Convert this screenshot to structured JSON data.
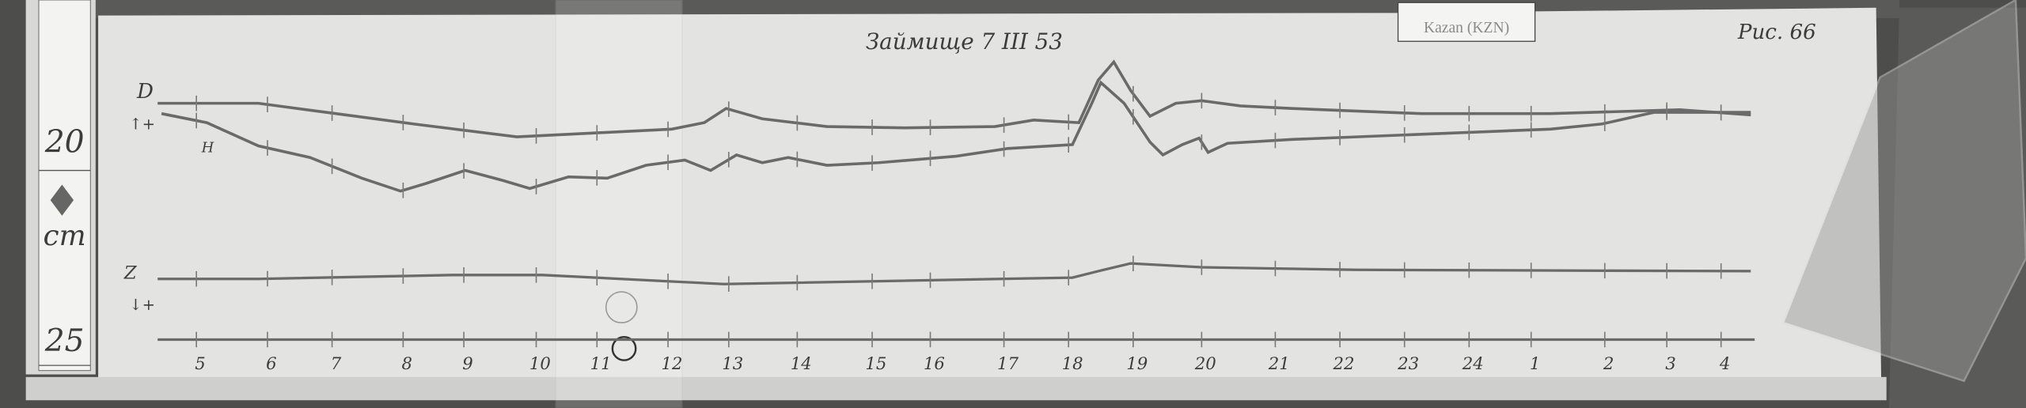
{
  "record": {
    "heading": "Займище 7 III 53",
    "page_number": "Рис. 66",
    "station_label": "Kazan (KZN)"
  },
  "ruler": {
    "mark_top": "20",
    "unit": "cm",
    "mark_bottom": "25"
  },
  "trace_labels": {
    "d": "D",
    "d_direction": "↑+",
    "h": "H",
    "z": "Z",
    "z_direction": "↓+"
  },
  "hour_labels": [
    "5",
    "6",
    "7",
    "8",
    "9",
    "10",
    "11",
    "12",
    "13",
    "14",
    "15",
    "16",
    "17",
    "18",
    "19",
    "20",
    "21",
    "22",
    "23",
    "24",
    "1",
    "2",
    "3",
    "4"
  ],
  "colors": {
    "paper": "#e4e4e2",
    "trace": "#6a6a6a",
    "wood": "#4a4a48"
  }
}
